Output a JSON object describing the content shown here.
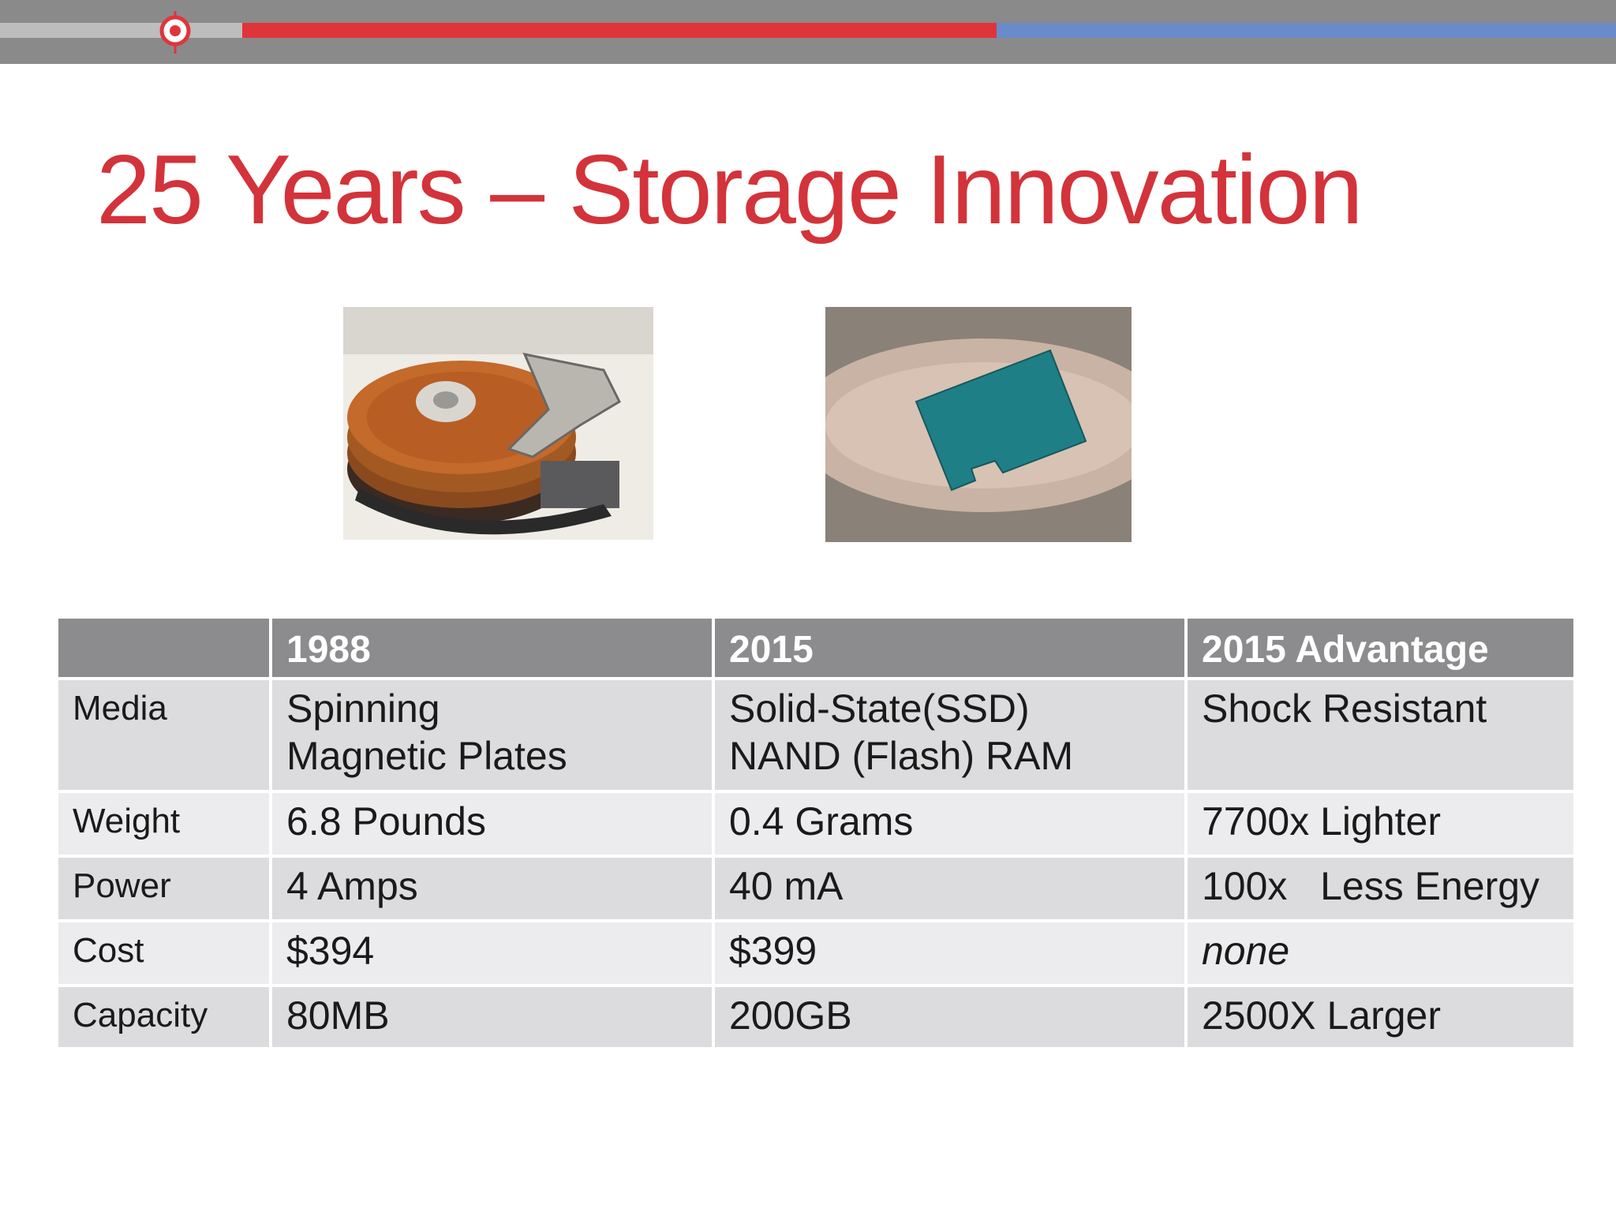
{
  "slide": {
    "title": "25 Years – Storage Innovation",
    "table": {
      "header": [
        "",
        "1988",
        "2015",
        "2015 Advantage"
      ],
      "rows": [
        [
          "Media",
          "Spinning\nMagnetic Plates",
          "Solid-State(SSD)\nNAND (Flash) RAM",
          "Shock Resistant"
        ],
        [
          "Weight",
          "6.8 Pounds",
          "0.4 Grams",
          "7700x Lighter"
        ],
        [
          "Power",
          "4 Amps",
          "40 mA",
          "100x   Less Energy"
        ],
        [
          "Cost",
          "$394",
          "$399",
          "none"
        ],
        [
          "Capacity",
          "80MB",
          "200GB",
          "2500X Larger"
        ]
      ]
    }
  }
}
